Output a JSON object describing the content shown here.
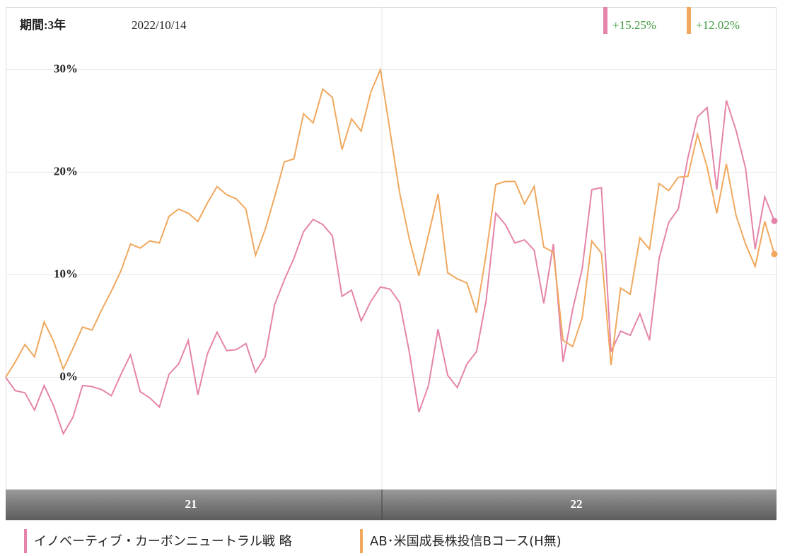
{
  "chart_data": {
    "type": "line",
    "header": {
      "period": "期間:3年",
      "date": "2022/10/14"
    },
    "x_axis_labels": [
      "21",
      "22"
    ],
    "ylim": [
      -10.8,
      36.1
    ],
    "yticks": [
      {
        "value": 0,
        "label": "0%"
      },
      {
        "value": 10,
        "label": "10%"
      },
      {
        "value": 20,
        "label": "20%"
      },
      {
        "value": 30,
        "label": "30%"
      }
    ],
    "grid": true,
    "series": [
      {
        "name": "イノベーティブ・カーボンニュートラル戦 略",
        "color": "#e584aa",
        "value_label": "+15.25%",
        "values": [
          0,
          -1.3,
          -1.5,
          -3.2,
          -0.8,
          -2.8,
          -5.5,
          -3.9,
          -0.8,
          -0.9,
          -1.2,
          -1.8,
          0.3,
          2.2,
          -1.4,
          -2,
          -2.9,
          0.3,
          1.3,
          3.6,
          -1.7,
          2.3,
          4.4,
          2.6,
          2.7,
          3.3,
          0.5,
          2,
          7.1,
          9.5,
          11.6,
          14.2,
          15.4,
          14.9,
          13.8,
          7.9,
          8.5,
          5.5,
          7.4,
          8.8,
          8.6,
          7.3,
          2.5,
          -3.4,
          -0.8,
          4.7,
          0.2,
          -1,
          1.3,
          2.5,
          7.5,
          16,
          14.9,
          13.1,
          13.4,
          12.4,
          7.2,
          13,
          1.5,
          6.6,
          10.6,
          18.3,
          18.5,
          2.5,
          4.5,
          4.1,
          6.2,
          3.6,
          11.6,
          15.1,
          16.4,
          21.4,
          25.4,
          26.3,
          18.3,
          27,
          24.1,
          20.4,
          12.5,
          17.6,
          15.25
        ]
      },
      {
        "name": "AB･米国成長株投信Bコース(H無)",
        "color": "#f0a85e",
        "value_label": "+12.02%",
        "values": [
          0,
          1.5,
          3.2,
          2,
          5.4,
          3.5,
          0.8,
          2.8,
          4.9,
          4.6,
          6.6,
          8.4,
          10.4,
          13,
          12.6,
          13.3,
          13.1,
          15.7,
          16.4,
          16,
          15.2,
          17,
          18.6,
          17.8,
          17.4,
          16.4,
          11.9,
          14.4,
          17.6,
          21,
          21.3,
          25.7,
          24.8,
          28.1,
          27.3,
          22.2,
          25.2,
          24,
          27.8,
          30,
          24,
          18,
          13.5,
          9.9,
          13.9,
          17.9,
          10.2,
          9.6,
          9.2,
          6.3,
          12,
          18.8,
          19.1,
          19.1,
          16.9,
          18.6,
          12.7,
          12.2,
          3.6,
          3,
          5.8,
          13.3,
          12.1,
          1.2,
          8.7,
          8.1,
          13.6,
          12.5,
          18.9,
          18.2,
          19.5,
          19.6,
          23.7,
          20.5,
          16,
          20.8,
          15.8,
          13,
          10.8,
          15.2,
          12.02
        ]
      }
    ]
  }
}
